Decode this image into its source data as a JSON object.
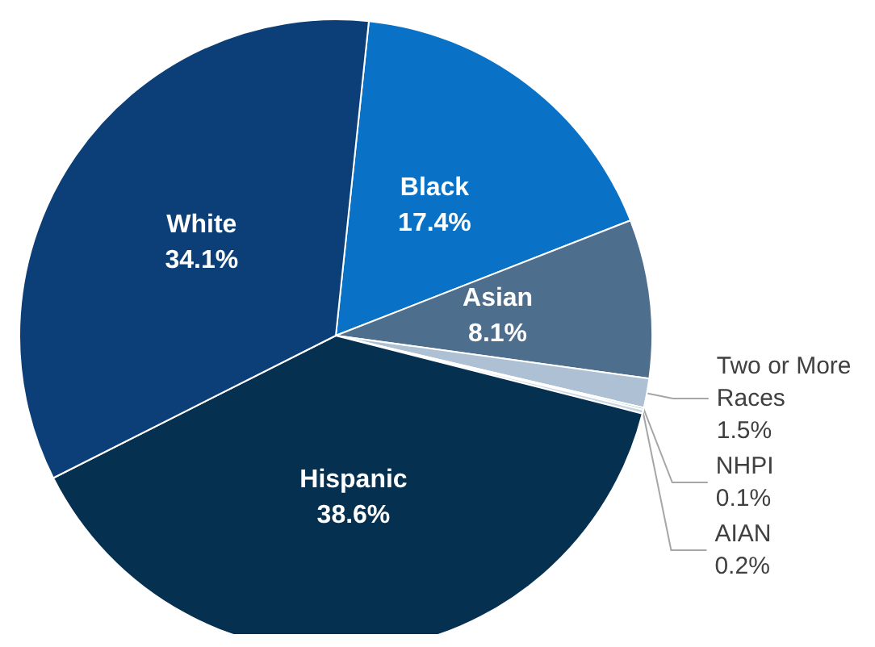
{
  "chart_data": {
    "type": "pie",
    "categories": [
      "Black",
      "Asian",
      "Two or More Races",
      "NHPI",
      "AIAN",
      "Hispanic",
      "White"
    ],
    "values": [
      17.4,
      8.1,
      1.5,
      0.1,
      0.2,
      38.6,
      34.1
    ],
    "colors": [
      "#0a72c6",
      "#4e6e8e",
      "#adc0d4",
      "#5fae6e",
      "#c9d6e3",
      "#06304f",
      "#0c3f77"
    ],
    "value_labels": [
      "17.4%",
      "8.1%",
      "1.5%",
      "0.1%",
      "0.2%",
      "38.6%",
      "34.1%"
    ],
    "legend": false
  }
}
